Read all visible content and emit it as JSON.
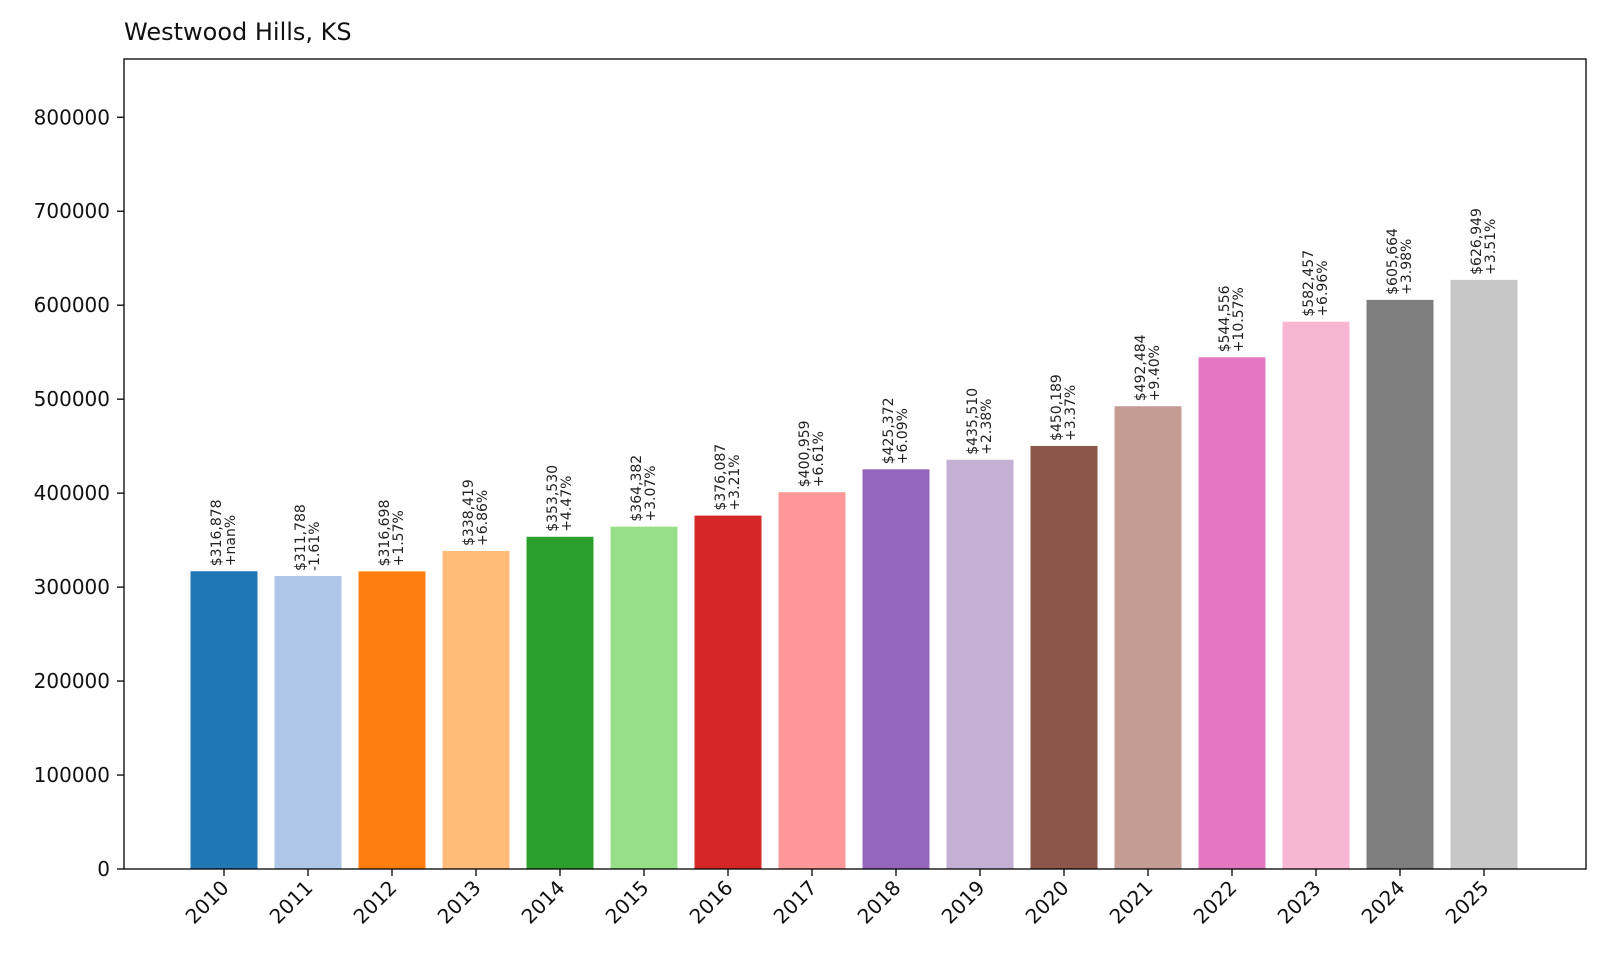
{
  "chart_data": {
    "type": "bar",
    "title": "Westwood Hills, KS",
    "xlabel": "",
    "ylabel": "",
    "categories": [
      "2010",
      "2011",
      "2012",
      "2013",
      "2014",
      "2015",
      "2016",
      "2017",
      "2018",
      "2019",
      "2020",
      "2021",
      "2022",
      "2023",
      "2024",
      "2025"
    ],
    "values": [
      316878,
      311788,
      316698,
      338419,
      353530,
      364382,
      376087,
      400959,
      425372,
      435510,
      450189,
      492484,
      544556,
      582457,
      605664,
      626949
    ],
    "value_labels": [
      "$316,878",
      "$311,788",
      "$316,698",
      "$338,419",
      "$353,530",
      "$364,382",
      "$376,087",
      "$400,959",
      "$425,372",
      "$435,510",
      "$450,189",
      "$492,484",
      "$544,556",
      "$582,457",
      "$605,664",
      "$626,949"
    ],
    "change_labels": [
      "+nan%",
      "-1.61%",
      "+1.57%",
      "+6.86%",
      "+4.47%",
      "+3.07%",
      "+3.21%",
      "+6.61%",
      "+6.09%",
      "+2.38%",
      "+3.37%",
      "+9.40%",
      "+10.57%",
      "+6.96%",
      "+3.98%",
      "+3.51%"
    ],
    "colors": [
      "#1f77b4",
      "#aec7e8",
      "#ff7f0e",
      "#ffbb78",
      "#2ca02c",
      "#98df8a",
      "#d62728",
      "#ff9896",
      "#9467bd",
      "#c5b0d5",
      "#8c564b",
      "#c49c94",
      "#e377c2",
      "#f7b6d2",
      "#7f7f7f",
      "#c7c7c7"
    ],
    "yticks": [
      "0",
      "100000",
      "200000",
      "300000",
      "400000",
      "500000",
      "600000",
      "700000",
      "800000"
    ],
    "ylim": [
      0,
      862000
    ],
    "grid": false,
    "legend": "none"
  }
}
